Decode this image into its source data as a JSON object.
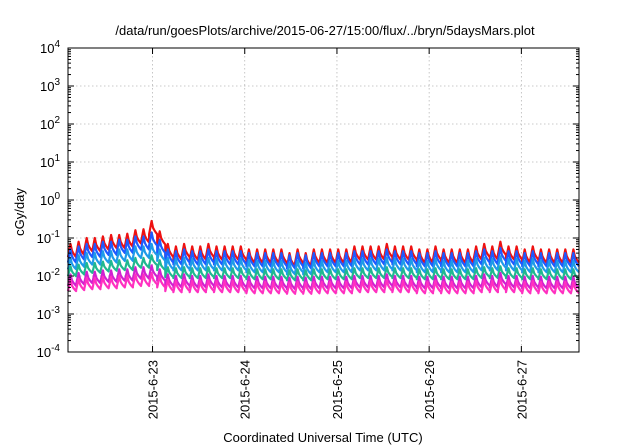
{
  "chart_data": {
    "type": "line",
    "title": "/data/run/goesPlots/archive/2015-06-27/15:00/flux/../bryn/5daysMars.plot",
    "xlabel": "Coordinated Universal Time (UTC)",
    "ylabel": "cGy/day",
    "y_scale": "log",
    "ylim": [
      0.0001,
      10000
    ],
    "y_ticks": [
      {
        "base": "10",
        "exp": "-4",
        "value": 0.0001
      },
      {
        "base": "10",
        "exp": "-3",
        "value": 0.001
      },
      {
        "base": "10",
        "exp": "-2",
        "value": 0.01
      },
      {
        "base": "10",
        "exp": "-1",
        "value": 0.1
      },
      {
        "base": "10",
        "exp": "0",
        "value": 1
      },
      {
        "base": "10",
        "exp": "1",
        "value": 10
      },
      {
        "base": "10",
        "exp": "2",
        "value": 100
      },
      {
        "base": "10",
        "exp": "3",
        "value": 1000
      },
      {
        "base": "10",
        "exp": "4",
        "value": 10000
      }
    ],
    "xlim": [
      "2015-06-22T02:00",
      "2015-06-27T15:00"
    ],
    "x_ticks": [
      "2015-6-23",
      "2015-6-24",
      "2015-6-25",
      "2015-6-26",
      "2015-6-27"
    ],
    "grid": true,
    "legend": "none",
    "series": [
      {
        "color": "#ee1111",
        "peak_values": [
          0.07,
          0.08,
          0.1,
          0.1,
          0.11,
          0.12,
          0.12,
          0.13,
          0.16,
          0.17,
          0.28,
          0.15,
          0.07,
          0.06,
          0.07,
          0.06,
          0.06,
          0.07,
          0.06,
          0.06,
          0.06,
          0.06,
          0.05,
          0.05,
          0.05,
          0.05,
          0.05,
          0.04,
          0.05,
          0.04,
          0.05,
          0.05,
          0.05,
          0.05,
          0.05,
          0.06,
          0.06,
          0.06,
          0.06,
          0.07,
          0.06,
          0.06,
          0.06,
          0.05,
          0.05,
          0.06,
          0.05,
          0.05,
          0.05,
          0.05,
          0.06,
          0.07,
          0.06,
          0.08,
          0.06,
          0.06,
          0.05,
          0.06,
          0.05,
          0.05,
          0.05,
          0.05,
          0.05
        ],
        "trough_factor": 0.45
      },
      {
        "color": "#1e5aff",
        "peak_values": [
          0.05,
          0.06,
          0.07,
          0.07,
          0.08,
          0.08,
          0.09,
          0.09,
          0.11,
          0.11,
          0.14,
          0.09,
          0.05,
          0.045,
          0.05,
          0.045,
          0.045,
          0.05,
          0.045,
          0.045,
          0.045,
          0.045,
          0.04,
          0.04,
          0.04,
          0.04,
          0.04,
          0.035,
          0.04,
          0.035,
          0.04,
          0.04,
          0.04,
          0.04,
          0.04,
          0.045,
          0.045,
          0.045,
          0.045,
          0.05,
          0.045,
          0.045,
          0.045,
          0.04,
          0.04,
          0.045,
          0.04,
          0.04,
          0.04,
          0.04,
          0.045,
          0.05,
          0.045,
          0.055,
          0.045,
          0.045,
          0.04,
          0.045,
          0.04,
          0.04,
          0.04,
          0.04,
          0.04
        ],
        "trough_factor": 0.45
      },
      {
        "color": "#1e9be8",
        "peak_values": [
          0.03,
          0.035,
          0.04,
          0.04,
          0.045,
          0.045,
          0.05,
          0.05,
          0.06,
          0.06,
          0.07,
          0.05,
          0.03,
          0.028,
          0.03,
          0.028,
          0.028,
          0.03,
          0.028,
          0.028,
          0.028,
          0.028,
          0.025,
          0.025,
          0.025,
          0.025,
          0.025,
          0.022,
          0.025,
          0.022,
          0.025,
          0.025,
          0.025,
          0.025,
          0.025,
          0.028,
          0.028,
          0.028,
          0.028,
          0.03,
          0.028,
          0.028,
          0.028,
          0.025,
          0.025,
          0.028,
          0.025,
          0.025,
          0.025,
          0.025,
          0.028,
          0.03,
          0.028,
          0.033,
          0.028,
          0.028,
          0.025,
          0.028,
          0.025,
          0.025,
          0.025,
          0.025,
          0.025
        ],
        "trough_factor": 0.5
      },
      {
        "color": "#20b890",
        "peak_values": [
          0.018,
          0.02,
          0.022,
          0.022,
          0.024,
          0.025,
          0.026,
          0.026,
          0.03,
          0.03,
          0.035,
          0.026,
          0.017,
          0.016,
          0.017,
          0.016,
          0.016,
          0.017,
          0.016,
          0.016,
          0.016,
          0.016,
          0.015,
          0.015,
          0.015,
          0.015,
          0.015,
          0.014,
          0.015,
          0.014,
          0.015,
          0.015,
          0.015,
          0.015,
          0.015,
          0.016,
          0.016,
          0.016,
          0.016,
          0.017,
          0.016,
          0.016,
          0.016,
          0.015,
          0.015,
          0.016,
          0.015,
          0.015,
          0.015,
          0.015,
          0.016,
          0.017,
          0.016,
          0.018,
          0.016,
          0.016,
          0.015,
          0.016,
          0.015,
          0.015,
          0.015,
          0.015,
          0.015
        ],
        "trough_factor": 0.55
      },
      {
        "color": "#d020d0",
        "peak_values": [
          0.011,
          0.012,
          0.013,
          0.013,
          0.014,
          0.014,
          0.015,
          0.015,
          0.017,
          0.017,
          0.019,
          0.015,
          0.011,
          0.01,
          0.011,
          0.01,
          0.01,
          0.011,
          0.01,
          0.01,
          0.01,
          0.01,
          0.0095,
          0.0095,
          0.0095,
          0.0095,
          0.0095,
          0.009,
          0.0095,
          0.009,
          0.0095,
          0.0095,
          0.0095,
          0.0095,
          0.0095,
          0.01,
          0.01,
          0.01,
          0.01,
          0.011,
          0.01,
          0.01,
          0.01,
          0.0095,
          0.0095,
          0.01,
          0.0095,
          0.0095,
          0.0095,
          0.0095,
          0.01,
          0.011,
          0.01,
          0.012,
          0.01,
          0.01,
          0.0095,
          0.01,
          0.0095,
          0.0095,
          0.0095,
          0.0095,
          0.0095
        ],
        "trough_factor": 0.5
      },
      {
        "color": "#ff30c0",
        "peak_values": [
          0.008,
          0.0085,
          0.009,
          0.009,
          0.0095,
          0.0095,
          0.01,
          0.01,
          0.011,
          0.011,
          0.012,
          0.01,
          0.008,
          0.0075,
          0.008,
          0.0075,
          0.0075,
          0.008,
          0.0075,
          0.0075,
          0.0075,
          0.0075,
          0.007,
          0.007,
          0.007,
          0.007,
          0.007,
          0.0068,
          0.007,
          0.0068,
          0.007,
          0.007,
          0.007,
          0.007,
          0.007,
          0.0075,
          0.0075,
          0.0075,
          0.0075,
          0.008,
          0.0075,
          0.0075,
          0.0075,
          0.007,
          0.007,
          0.0075,
          0.007,
          0.007,
          0.007,
          0.007,
          0.0075,
          0.008,
          0.0075,
          0.0085,
          0.0075,
          0.0075,
          0.007,
          0.0075,
          0.007,
          0.007,
          0.007,
          0.007,
          0.007
        ],
        "trough_factor": 0.5
      }
    ]
  }
}
